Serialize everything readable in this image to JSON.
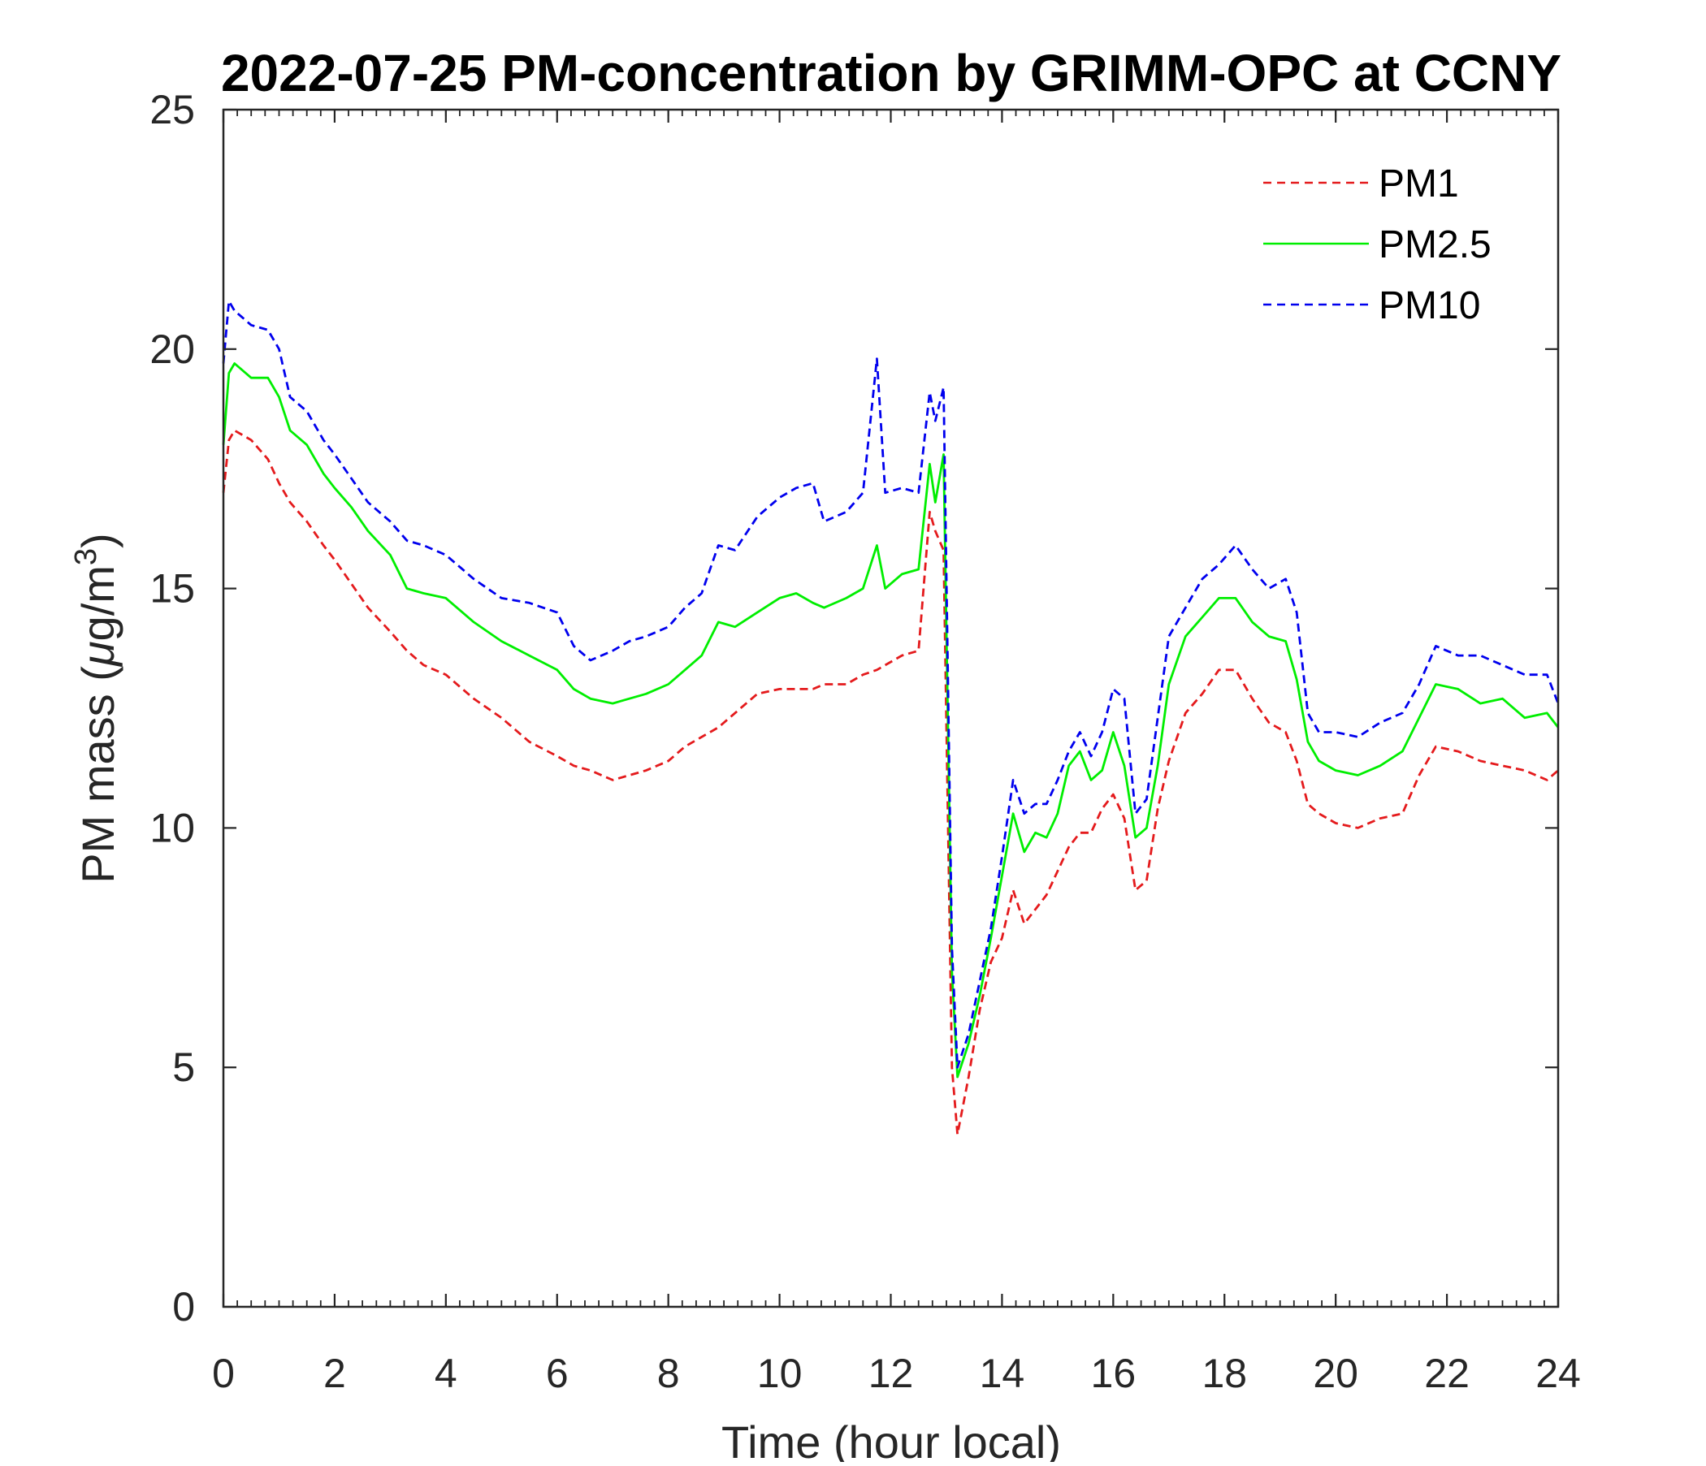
{
  "chart_data": {
    "type": "line",
    "title": "2022-07-25 PM-concentration by GRIMM-OPC at CCNY",
    "xlabel": "Time (hour local)",
    "ylabel_main": "PM mass (",
    "ylabel_mu": "μ",
    "ylabel_units": "g/m",
    "ylabel_exp": "3",
    "ylabel_close": ")",
    "xlim": [
      0,
      24
    ],
    "ylim": [
      0,
      25
    ],
    "xticks": [
      0,
      2,
      4,
      6,
      8,
      10,
      12,
      14,
      16,
      18,
      20,
      22,
      24
    ],
    "xtick_labels": [
      "0",
      "2",
      "4",
      "6",
      "8",
      "10",
      "12",
      "14",
      "16",
      "18",
      "20",
      "22",
      "24"
    ],
    "yticks": [
      0,
      5,
      10,
      15,
      20,
      25
    ],
    "ytick_labels": [
      "0",
      "5",
      "10",
      "15",
      "20",
      "25"
    ],
    "grid": false,
    "legend_position": "top-right",
    "x": [
      0,
      0.1,
      0.2,
      0.5,
      0.8,
      1.0,
      1.2,
      1.5,
      1.8,
      2.0,
      2.3,
      2.6,
      3.0,
      3.3,
      3.6,
      4.0,
      4.5,
      5.0,
      5.5,
      6.0,
      6.3,
      6.6,
      7.0,
      7.3,
      7.6,
      8.0,
      8.3,
      8.6,
      8.9,
      9.2,
      9.6,
      10.0,
      10.3,
      10.6,
      10.8,
      11.2,
      11.5,
      11.75,
      11.9,
      12.2,
      12.5,
      12.7,
      12.8,
      12.95,
      13.1,
      13.2,
      13.4,
      13.6,
      13.8,
      14.0,
      14.2,
      14.4,
      14.6,
      14.8,
      15.0,
      15.2,
      15.4,
      15.6,
      15.8,
      16.0,
      16.2,
      16.4,
      16.6,
      16.8,
      17.0,
      17.3,
      17.6,
      17.9,
      18.2,
      18.5,
      18.8,
      19.1,
      19.3,
      19.5,
      19.7,
      20.0,
      20.4,
      20.8,
      21.2,
      21.5,
      21.8,
      22.2,
      22.6,
      23.0,
      23.4,
      23.8,
      24.0
    ],
    "series": [
      {
        "name": "PM1",
        "color": "#e41a1c",
        "style": "dashed",
        "values": [
          17.0,
          18.1,
          18.3,
          18.1,
          17.7,
          17.2,
          16.8,
          16.4,
          15.9,
          15.6,
          15.1,
          14.6,
          14.1,
          13.7,
          13.4,
          13.2,
          12.7,
          12.3,
          11.8,
          11.5,
          11.3,
          11.2,
          11.0,
          11.1,
          11.2,
          11.4,
          11.7,
          11.9,
          12.1,
          12.4,
          12.8,
          12.9,
          12.9,
          12.9,
          13.0,
          13.0,
          13.2,
          13.3,
          13.4,
          13.6,
          13.7,
          16.6,
          16.2,
          15.8,
          5.0,
          3.6,
          4.8,
          6.2,
          7.2,
          7.7,
          8.7,
          8.0,
          8.3,
          8.6,
          9.1,
          9.6,
          9.9,
          9.9,
          10.4,
          10.7,
          10.2,
          8.7,
          8.9,
          10.4,
          11.4,
          12.4,
          12.8,
          13.3,
          13.3,
          12.7,
          12.2,
          12.0,
          11.4,
          10.5,
          10.3,
          10.1,
          10.0,
          10.2,
          10.3,
          11.1,
          11.7,
          11.6,
          11.4,
          11.3,
          11.2,
          11.0,
          11.2
        ]
      },
      {
        "name": "PM2.5",
        "color": "#00ee00",
        "style": "solid",
        "values": [
          18.0,
          19.5,
          19.7,
          19.4,
          19.4,
          19.0,
          18.3,
          18.0,
          17.4,
          17.1,
          16.7,
          16.2,
          15.7,
          15.0,
          14.9,
          14.8,
          14.3,
          13.9,
          13.6,
          13.3,
          12.9,
          12.7,
          12.6,
          12.7,
          12.8,
          13.0,
          13.3,
          13.6,
          14.3,
          14.2,
          14.5,
          14.8,
          14.9,
          14.7,
          14.6,
          14.8,
          15.0,
          15.9,
          15.0,
          15.3,
          15.4,
          17.6,
          16.8,
          17.8,
          7.0,
          4.8,
          5.5,
          6.5,
          7.7,
          9.0,
          10.3,
          9.5,
          9.9,
          9.8,
          10.3,
          11.3,
          11.6,
          11.0,
          11.2,
          12.0,
          11.3,
          9.8,
          10.0,
          11.3,
          13.0,
          14.0,
          14.4,
          14.8,
          14.8,
          14.3,
          14.0,
          13.9,
          13.1,
          11.8,
          11.4,
          11.2,
          11.1,
          11.3,
          11.6,
          12.3,
          13.0,
          12.9,
          12.6,
          12.7,
          12.3,
          12.4,
          12.1
        ]
      },
      {
        "name": "PM10",
        "color": "#0000ee",
        "style": "dashed",
        "values": [
          19.7,
          21.0,
          20.8,
          20.5,
          20.4,
          20.0,
          19.0,
          18.7,
          18.1,
          17.8,
          17.3,
          16.8,
          16.4,
          16.0,
          15.9,
          15.7,
          15.2,
          14.8,
          14.7,
          14.5,
          13.8,
          13.5,
          13.7,
          13.9,
          14.0,
          14.2,
          14.6,
          14.9,
          15.9,
          15.8,
          16.5,
          16.9,
          17.1,
          17.2,
          16.4,
          16.6,
          17.0,
          19.8,
          17.0,
          17.1,
          17.0,
          19.1,
          18.5,
          19.2,
          7.5,
          5.0,
          5.7,
          6.8,
          7.9,
          9.4,
          11.0,
          10.3,
          10.5,
          10.5,
          11.0,
          11.6,
          12.0,
          11.5,
          12.0,
          12.9,
          12.7,
          10.3,
          10.6,
          12.3,
          14.0,
          14.6,
          15.2,
          15.5,
          15.9,
          15.4,
          15.0,
          15.2,
          14.5,
          12.4,
          12.0,
          12.0,
          11.9,
          12.2,
          12.4,
          13.0,
          13.8,
          13.6,
          13.6,
          13.4,
          13.2,
          13.2,
          12.6
        ]
      }
    ]
  }
}
